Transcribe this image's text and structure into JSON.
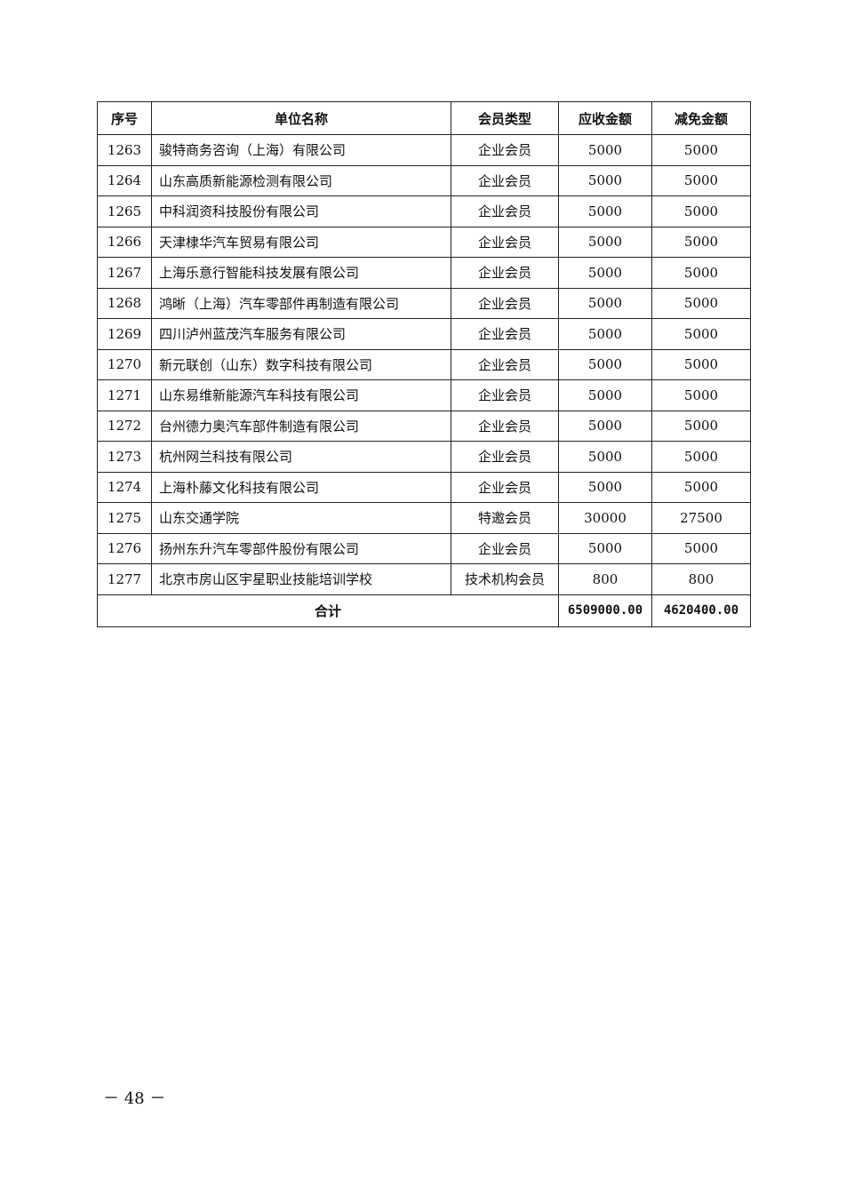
{
  "table": {
    "headers": [
      "序号",
      "单位名称",
      "会员类型",
      "应收金额",
      "减免金额"
    ],
    "rows": [
      [
        "1263",
        "骏特商务咨询（上海）有限公司",
        "企业会员",
        "5000",
        "5000"
      ],
      [
        "1264",
        "山东高质新能源检测有限公司",
        "企业会员",
        "5000",
        "5000"
      ],
      [
        "1265",
        "中科润资科技股份有限公司",
        "企业会员",
        "5000",
        "5000"
      ],
      [
        "1266",
        "天津棣华汽车贸易有限公司",
        "企业会员",
        "5000",
        "5000"
      ],
      [
        "1267",
        "上海乐意行智能科技发展有限公司",
        "企业会员",
        "5000",
        "5000"
      ],
      [
        "1268",
        "鸿晰（上海）汽车零部件再制造有限公司",
        "企业会员",
        "5000",
        "5000"
      ],
      [
        "1269",
        "四川泸州蓝茂汽车服务有限公司",
        "企业会员",
        "5000",
        "5000"
      ],
      [
        "1270",
        "新元联创（山东）数字科技有限公司",
        "企业会员",
        "5000",
        "5000"
      ],
      [
        "1271",
        "山东易维新能源汽车科技有限公司",
        "企业会员",
        "5000",
        "5000"
      ],
      [
        "1272",
        "台州德力奥汽车部件制造有限公司",
        "企业会员",
        "5000",
        "5000"
      ],
      [
        "1273",
        "杭州网兰科技有限公司",
        "企业会员",
        "5000",
        "5000"
      ],
      [
        "1274",
        "上海朴藤文化科技有限公司",
        "企业会员",
        "5000",
        "5000"
      ],
      [
        "1275",
        "山东交通学院",
        "特邀会员",
        "30000",
        "27500"
      ],
      [
        "1276",
        "扬州东升汽车零部件股份有限公司",
        "企业会员",
        "5000",
        "5000"
      ],
      [
        "1277",
        "北京市房山区宇星职业技能培训学校",
        "技术机构会员",
        "800",
        "800"
      ]
    ],
    "total": {
      "label": "合计",
      "receivable": "6509000.00",
      "waived": "4620400.00"
    }
  },
  "page_number": "－ 48 －"
}
